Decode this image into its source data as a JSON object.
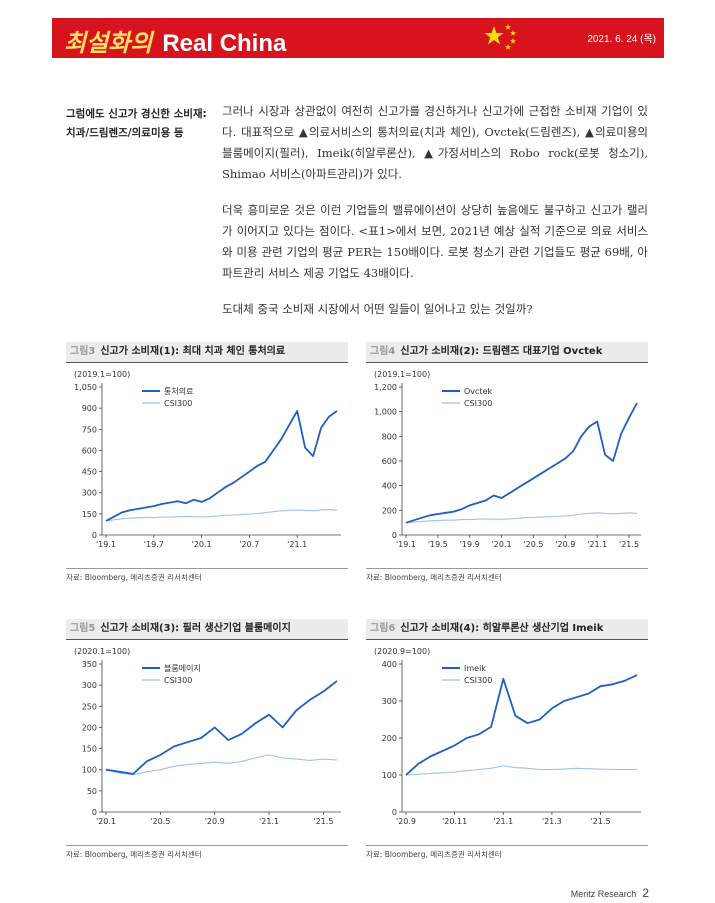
{
  "header": {
    "title_kr": "최설화의",
    "title_en": "Real China",
    "date": "2021. 6. 24 (목)",
    "brand_color": "#d7141d"
  },
  "sidebar": {
    "line1": "그럼에도 신고가 경신한 소비재:",
    "line2": "치과/드림렌즈/의료미용 등"
  },
  "body": {
    "p1": "그러나 시장과 상관없이 여전히 신고가를 경신하거나 신고가에 근접한 소비재 기업이 있다. 대표적으로 ▲의료서비스의 통처의료(치과 체인), Ovctek(드림렌즈), ▲의료미용의 블룸메이지(필러), Imeik(히알루론산), ▲가정서비스의 Robo rock(로봇 청소기), Shimao 서비스(아파트관리)가 있다.",
    "p2": "더욱 흥미로운 것은 이런 기업들의 밸류에이션이 상당히 높음에도 불구하고 신고가 랠리가 이어지고 있다는 점이다. <표1>에서 보면, 2021년 예상 실적 기준으로 의료 서비스와 미용 관련 기업의 평균 PER는 150배이다. 로봇 청소기 관련 기업들도 평균 69배, 아파트관리 서비스 제공 기업도 43배이다.",
    "p3": "도대체 중국 소비재 시장에서 어떤 일들이 일어나고 있는 것일까?"
  },
  "footer": {
    "brand": "Meritz Research",
    "page": "2"
  },
  "chart_data": [
    {
      "type": "line",
      "label": "그림3",
      "title": "신고가 소비재(1): 최대 치과 체인 통처의료",
      "unit_note": "(2019.1=100)",
      "ylim": [
        0,
        1050
      ],
      "yticks": [
        "1,050",
        "900",
        "750",
        "600",
        "450",
        "300",
        "150",
        "0"
      ],
      "ytick_values": [
        1050,
        900,
        750,
        600,
        450,
        300,
        150,
        0
      ],
      "xticks": [
        "'19.1",
        "'19.7",
        "'20.1",
        "'20.7",
        "'21.1"
      ],
      "x_count": 30,
      "xtick_index": [
        0,
        6,
        12,
        18,
        24
      ],
      "series": [
        {
          "name": "통처의료",
          "color": "#1f5fbf",
          "values": [
            100,
            130,
            160,
            175,
            185,
            195,
            205,
            220,
            230,
            240,
            225,
            250,
            235,
            260,
            300,
            340,
            370,
            410,
            450,
            490,
            520,
            600,
            680,
            780,
            880,
            620,
            560,
            760,
            840,
            880
          ]
        },
        {
          "name": "CSI300",
          "color": "#9cc3ea",
          "values": [
            100,
            108,
            115,
            120,
            122,
            125,
            123,
            128,
            126,
            130,
            132,
            130,
            128,
            130,
            135,
            140,
            142,
            145,
            148,
            152,
            158,
            165,
            172,
            175,
            178,
            175,
            172,
            178,
            180,
            175
          ]
        }
      ],
      "source": "자료: Bloomberg, 메리츠증권 리서치센터"
    },
    {
      "type": "line",
      "label": "그림4",
      "title": "신고가 소비재(2): 드림렌즈 대표기업 Ovctek",
      "unit_note": "(2019.1=100)",
      "ylim": [
        0,
        1200
      ],
      "yticks": [
        "1,200",
        "1,000",
        "800",
        "600",
        "400",
        "200",
        "0"
      ],
      "ytick_values": [
        1200,
        1000,
        800,
        600,
        400,
        200,
        0
      ],
      "xticks": [
        "'19.1",
        "'19.5",
        "'19.9",
        "'20.1",
        "'20.5",
        "'20.9",
        "'21.1",
        "'21.5"
      ],
      "x_count": 30,
      "xtick_index": [
        0,
        4,
        8,
        12,
        16,
        20,
        24,
        28
      ],
      "series": [
        {
          "name": "Ovctek",
          "color": "#1f5fbf",
          "values": [
            100,
            120,
            140,
            160,
            170,
            180,
            190,
            210,
            240,
            260,
            280,
            320,
            300,
            340,
            380,
            420,
            460,
            500,
            540,
            580,
            620,
            680,
            800,
            880,
            920,
            650,
            600,
            820,
            950,
            1070
          ]
        },
        {
          "name": "CSI300",
          "color": "#9cc3ea",
          "values": [
            100,
            105,
            110,
            115,
            118,
            120,
            120,
            125,
            125,
            128,
            130,
            128,
            128,
            130,
            135,
            140,
            142,
            145,
            148,
            150,
            155,
            160,
            170,
            175,
            180,
            175,
            172,
            175,
            180,
            175
          ]
        }
      ],
      "source": "자료: Bloomberg, 메리츠증권 리서치센터"
    },
    {
      "type": "line",
      "label": "그림5",
      "title": "신고가 소비재(3): 필러 생산기업 블룸메이지",
      "unit_note": "(2020.1=100)",
      "ylim": [
        0,
        350
      ],
      "yticks": [
        "350",
        "300",
        "250",
        "200",
        "150",
        "100",
        "50",
        "0"
      ],
      "ytick_values": [
        350,
        300,
        250,
        200,
        150,
        100,
        50,
        0
      ],
      "xticks": [
        "'20.1",
        "'20.5",
        "'20.9",
        "'21.1",
        "'21.5"
      ],
      "x_count": 18,
      "xtick_index": [
        0,
        4,
        8,
        12,
        16
      ],
      "series": [
        {
          "name": "블룸메이지",
          "color": "#1f5fbf",
          "values": [
            100,
            95,
            90,
            120,
            135,
            155,
            165,
            175,
            200,
            170,
            185,
            210,
            230,
            200,
            240,
            265,
            285,
            310
          ]
        },
        {
          "name": "CSI300",
          "color": "#9cc3ea",
          "values": [
            100,
            92,
            88,
            95,
            100,
            108,
            112,
            115,
            118,
            115,
            120,
            128,
            135,
            128,
            125,
            122,
            125,
            123
          ]
        }
      ],
      "source": "자료: Bloomberg, 메리츠증권 리서치센터"
    },
    {
      "type": "line",
      "label": "그림6",
      "title": "신고가 소비재(4): 히알루론산 생산기업 Imeik",
      "unit_note": "(2020.9=100)",
      "ylim": [
        0,
        400
      ],
      "yticks": [
        "400",
        "300",
        "200",
        "100",
        "0"
      ],
      "ytick_values": [
        400,
        300,
        200,
        100,
        0
      ],
      "xticks": [
        "'20.9",
        "'20.11",
        "'21.1",
        "'21.3",
        "'21.5"
      ],
      "x_count": 20,
      "xtick_index": [
        0,
        4,
        8,
        12,
        16
      ],
      "series": [
        {
          "name": "Imeik",
          "color": "#1f5fbf",
          "values": [
            100,
            130,
            150,
            165,
            180,
            200,
            210,
            230,
            360,
            260,
            240,
            250,
            280,
            300,
            310,
            320,
            340,
            345,
            355,
            370
          ]
        },
        {
          "name": "CSI300",
          "color": "#9cc3ea",
          "values": [
            100,
            102,
            104,
            106,
            108,
            112,
            115,
            118,
            125,
            120,
            118,
            115,
            115,
            116,
            118,
            117,
            116,
            115,
            115,
            115
          ]
        }
      ],
      "source": "자료: Bloomberg, 메리츠증권 리서치센터"
    }
  ]
}
